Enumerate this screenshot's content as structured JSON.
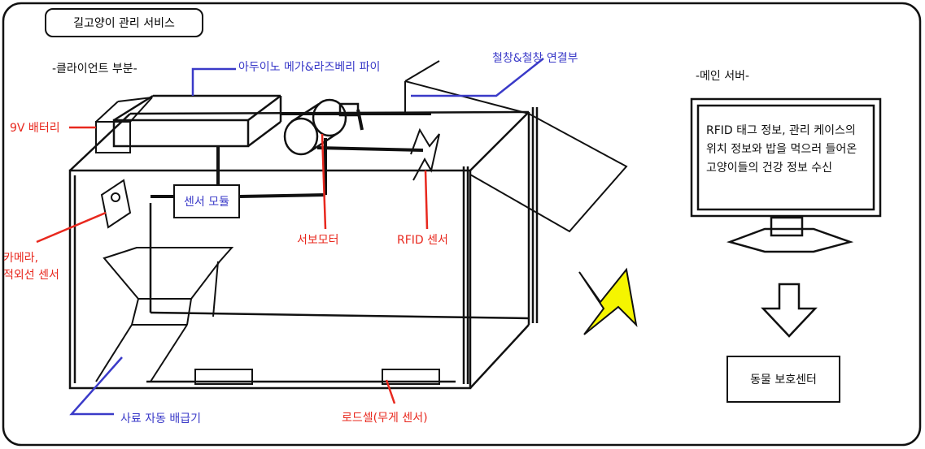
{
  "title": "길고양이 관리 서비스",
  "sections": {
    "client": "-클라이언트 부분-",
    "server": "-메인 서버-"
  },
  "labels": {
    "arduino": "아두이노 메가&라즈베리 파이",
    "hinge": "철창&철창 연결부",
    "battery": "9V 배터리",
    "sensor_module": "센서 모듈",
    "servo": "서보모터",
    "rfid": "RFID 센서",
    "camera_line1": "카메라,",
    "camera_line2": "적외선 센서",
    "feeder": "사료 자동 배급기",
    "loadcell": "로드셀(무게 센서)"
  },
  "server": {
    "text": "RFID 태그 정보, 관리 케이스의 위치 정보와 밥을 먹으러 들어온 고양이들의 건강 정보 수신"
  },
  "center": "동물 보호센터",
  "colors": {
    "red_label": "#e8281e",
    "blue_label": "#3a3ac8",
    "lightning": "#f5f500"
  }
}
